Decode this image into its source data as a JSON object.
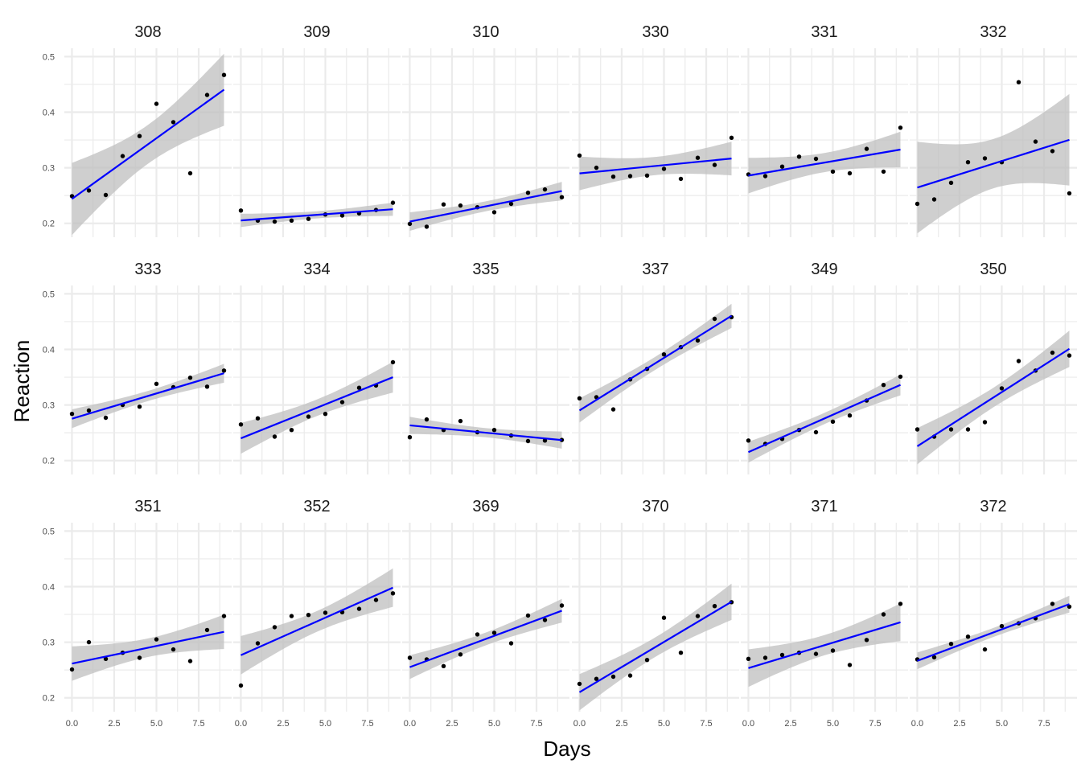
{
  "chart_data": {
    "type": "scatter",
    "xlabel": "Days",
    "ylabel": "Reaction",
    "x": [
      0,
      1,
      2,
      3,
      4,
      5,
      6,
      7,
      8,
      9
    ],
    "xlim": [
      -0.45,
      9.45
    ],
    "ylim": [
      0.175,
      0.515
    ],
    "x_ticks": [
      0,
      2.5,
      5,
      7.5
    ],
    "x_tick_labels": [
      "0.0",
      "2.5",
      "5.0",
      "7.5"
    ],
    "y_ticks": [
      0.2,
      0.3,
      0.4,
      0.5
    ],
    "y_tick_labels": [
      "0.2",
      "0.3",
      "0.4",
      "0.5"
    ],
    "grid": true,
    "overlay": "linear fit with confidence band",
    "colors": {
      "fit": "#0000ff",
      "band": "#bfbfbf",
      "point": "#000000",
      "grid": "#ebebeb"
    },
    "panels": [
      {
        "name": "308",
        "values": [
          0.249,
          0.259,
          0.251,
          0.321,
          0.357,
          0.415,
          0.382,
          0.29,
          0.431,
          0.467
        ]
      },
      {
        "name": "309",
        "values": [
          0.223,
          0.205,
          0.203,
          0.205,
          0.208,
          0.216,
          0.214,
          0.218,
          0.224,
          0.237
        ]
      },
      {
        "name": "310",
        "values": [
          0.199,
          0.194,
          0.234,
          0.232,
          0.229,
          0.22,
          0.235,
          0.255,
          0.261,
          0.247
        ]
      },
      {
        "name": "330",
        "values": [
          0.322,
          0.3,
          0.284,
          0.285,
          0.286,
          0.298,
          0.28,
          0.318,
          0.305,
          0.354
        ]
      },
      {
        "name": "331",
        "values": [
          0.288,
          0.285,
          0.302,
          0.32,
          0.316,
          0.293,
          0.29,
          0.334,
          0.293,
          0.372
        ]
      },
      {
        "name": "332",
        "values": [
          0.235,
          0.243,
          0.273,
          0.31,
          0.317,
          0.31,
          0.454,
          0.347,
          0.33,
          0.254
        ]
      },
      {
        "name": "333",
        "values": [
          0.284,
          0.29,
          0.277,
          0.3,
          0.297,
          0.338,
          0.332,
          0.349,
          0.333,
          0.362
        ]
      },
      {
        "name": "334",
        "values": [
          0.265,
          0.276,
          0.243,
          0.255,
          0.279,
          0.284,
          0.305,
          0.331,
          0.335,
          0.377
        ]
      },
      {
        "name": "335",
        "values": [
          0.242,
          0.274,
          0.255,
          0.271,
          0.251,
          0.255,
          0.245,
          0.235,
          0.236,
          0.237
        ]
      },
      {
        "name": "337",
        "values": [
          0.312,
          0.314,
          0.292,
          0.346,
          0.365,
          0.391,
          0.404,
          0.416,
          0.455,
          0.458
        ]
      },
      {
        "name": "349",
        "values": [
          0.236,
          0.23,
          0.239,
          0.255,
          0.251,
          0.27,
          0.281,
          0.308,
          0.336,
          0.351
        ]
      },
      {
        "name": "350",
        "values": [
          0.256,
          0.243,
          0.256,
          0.256,
          0.269,
          0.33,
          0.379,
          0.362,
          0.394,
          0.389
        ]
      },
      {
        "name": "351",
        "values": [
          0.251,
          0.3,
          0.27,
          0.281,
          0.272,
          0.305,
          0.287,
          0.266,
          0.322,
          0.347
        ]
      },
      {
        "name": "352",
        "values": [
          0.222,
          0.298,
          0.327,
          0.347,
          0.349,
          0.353,
          0.354,
          0.36,
          0.376,
          0.388
        ]
      },
      {
        "name": "369",
        "values": [
          0.272,
          0.269,
          0.257,
          0.278,
          0.314,
          0.317,
          0.298,
          0.348,
          0.34,
          0.366
        ]
      },
      {
        "name": "370",
        "values": [
          0.225,
          0.234,
          0.238,
          0.24,
          0.268,
          0.344,
          0.281,
          0.347,
          0.365,
          0.372
        ]
      },
      {
        "name": "371",
        "values": [
          0.27,
          0.272,
          0.277,
          0.281,
          0.279,
          0.285,
          0.259,
          0.304,
          0.35,
          0.369
        ]
      },
      {
        "name": "372",
        "values": [
          0.269,
          0.273,
          0.297,
          0.31,
          0.287,
          0.329,
          0.334,
          0.343,
          0.369,
          0.364
        ]
      }
    ]
  }
}
